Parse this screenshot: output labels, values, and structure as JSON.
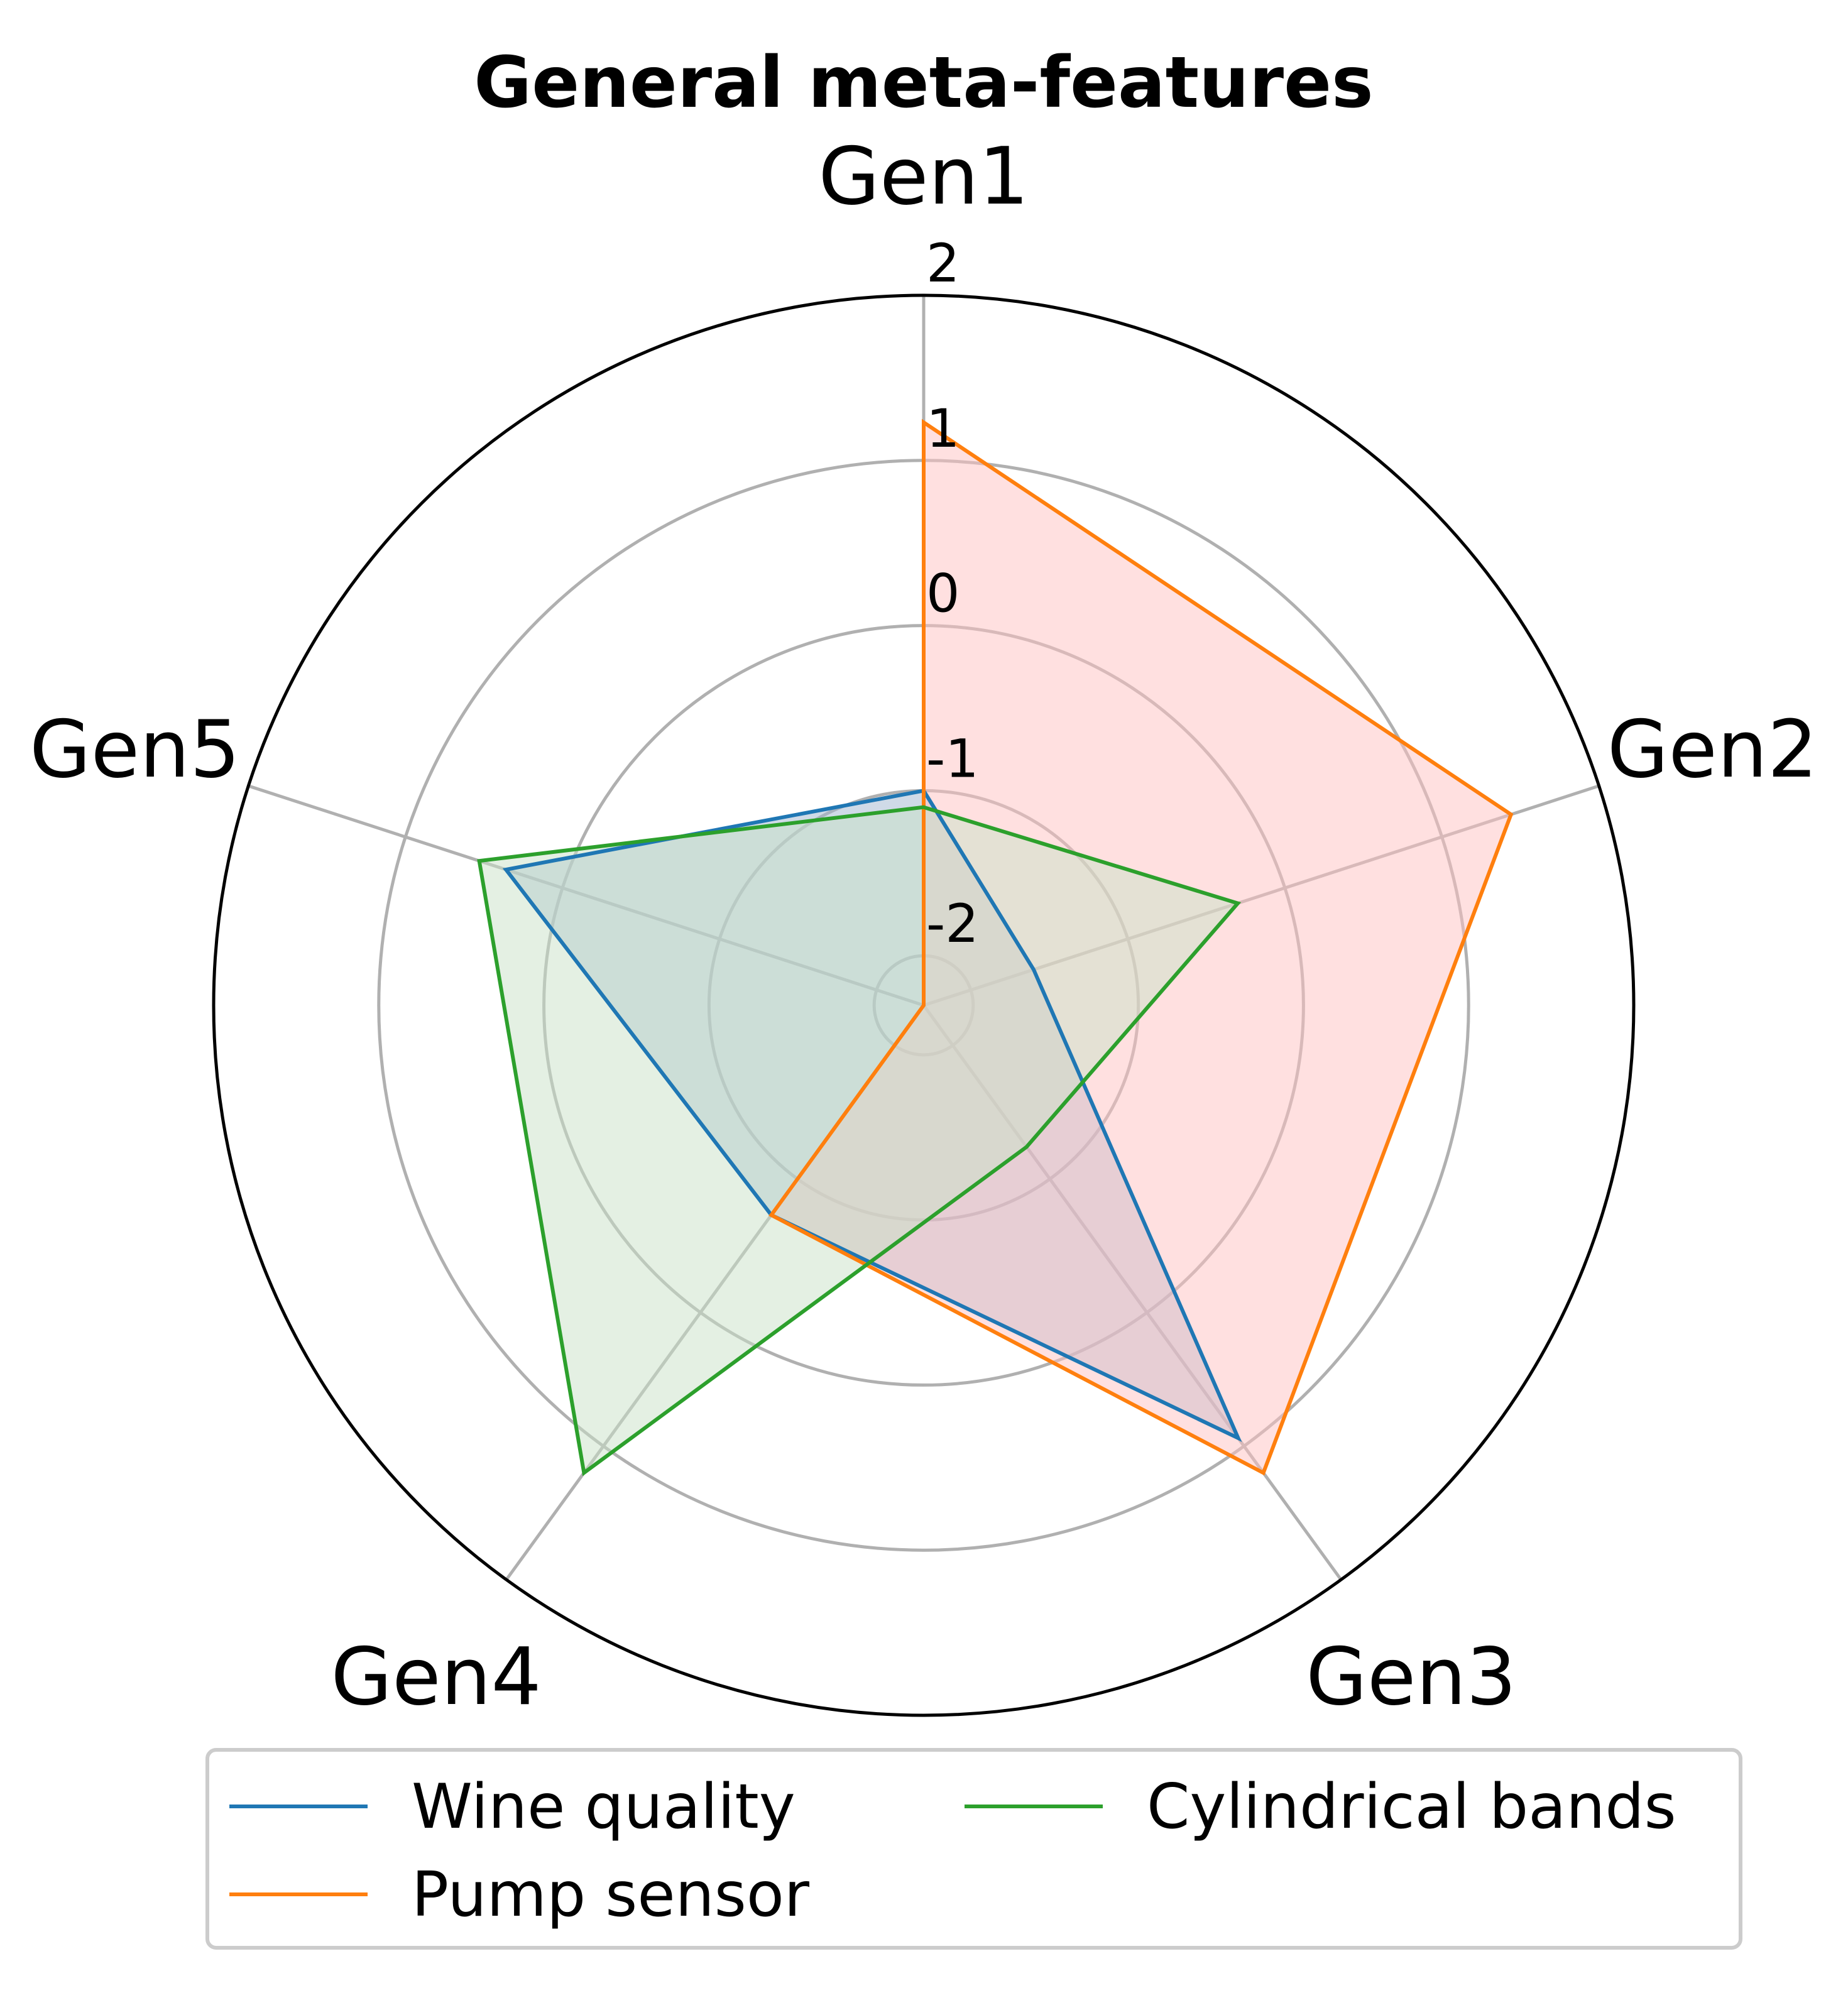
{
  "chart_data": {
    "type": "radar",
    "title": "General meta-features",
    "axes": [
      "Gen1",
      "Gen2",
      "Gen3",
      "Gen4",
      "Gen5"
    ],
    "rlim": [
      -2.3,
      2.0
    ],
    "rticks": [
      -2,
      -1,
      0,
      1,
      2
    ],
    "rtick_labels": [
      "-2",
      "-1",
      "0",
      "1",
      "2"
    ],
    "grid": true,
    "legend": {
      "placement": "bottom",
      "columns": 2
    },
    "series": [
      {
        "name": "Wine quality",
        "color": "#1f77b4",
        "fill": "#9fb6cf",
        "values": [
          -1.0,
          -1.6,
          0.94,
          -0.73,
          0.36
        ]
      },
      {
        "name": "Pump sensor",
        "color": "#ff7f0e",
        "fill": "#ffc2c2",
        "values": [
          1.23,
          1.44,
          1.2,
          -0.73,
          -3.8
        ]
      },
      {
        "name": "Cylindrical bands",
        "color": "#2ca02c",
        "fill": "#c9e2c8",
        "values": [
          -1.1,
          -0.3,
          -1.24,
          1.2,
          0.53
        ]
      }
    ]
  }
}
